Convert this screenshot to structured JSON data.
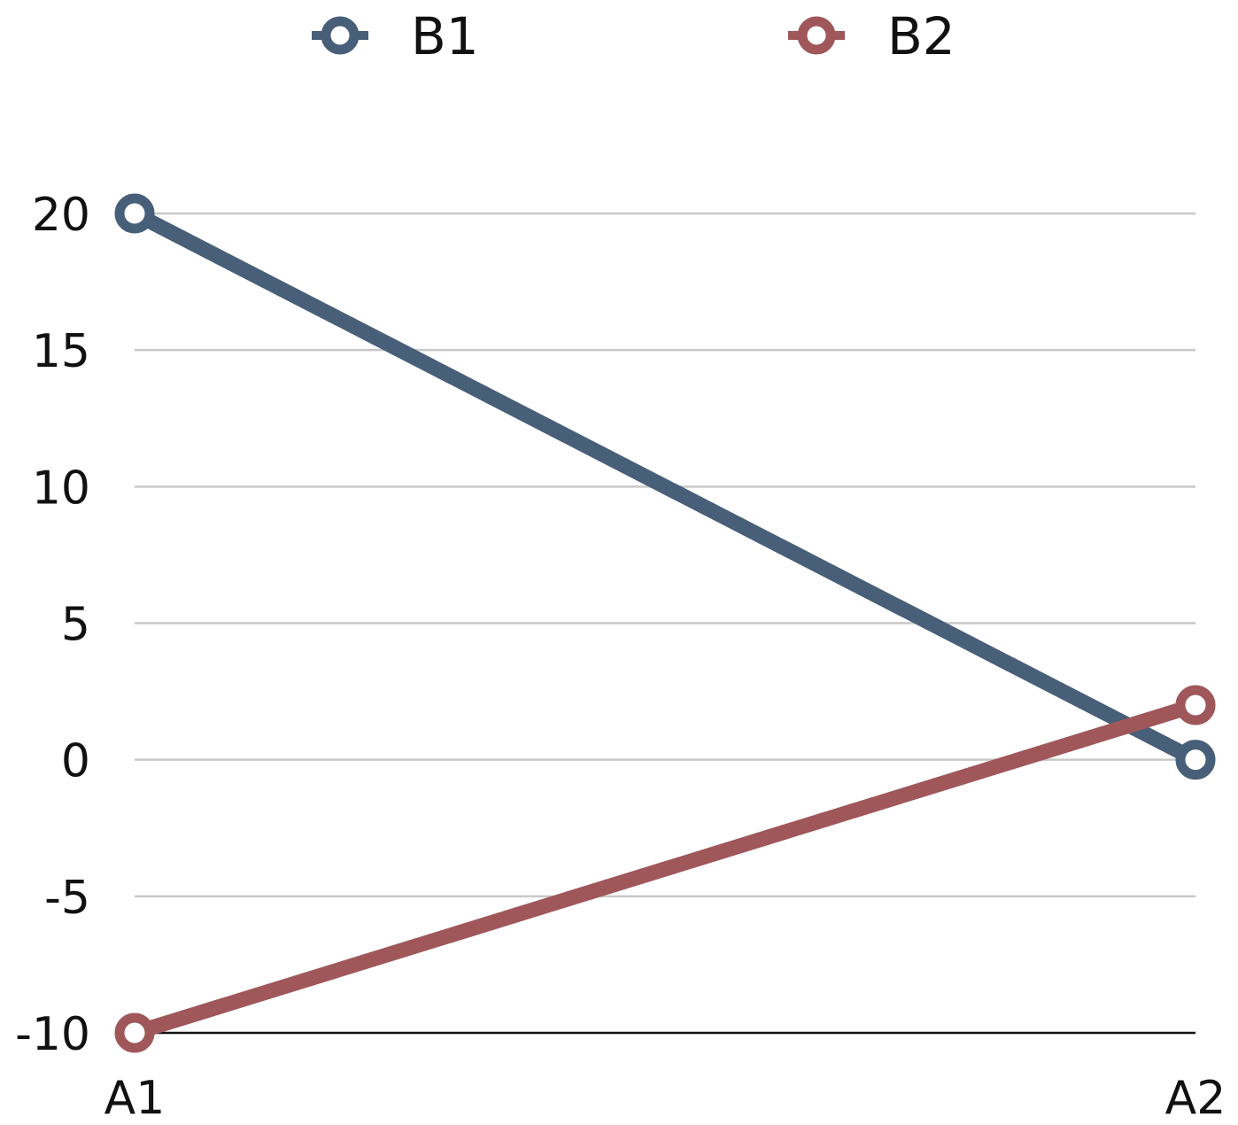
{
  "chart_data": {
    "type": "line",
    "title": "",
    "xlabel": "",
    "ylabel": "",
    "categories": [
      "A1",
      "A2"
    ],
    "series": [
      {
        "name": "B1",
        "values": [
          20,
          0
        ],
        "color": "#485f79"
      },
      {
        "name": "B2",
        "values": [
          -10,
          2
        ],
        "color": "#9f575a"
      }
    ],
    "ylim": [
      -10,
      20
    ],
    "yticks": [
      "20",
      "15",
      "10",
      "5",
      "0",
      "-5",
      "-10"
    ],
    "ytick_values": [
      20,
      15,
      10,
      5,
      0,
      -5,
      -10
    ],
    "grid": true,
    "legend": {
      "placement": "top-center",
      "markers": "hollow-circle"
    }
  }
}
